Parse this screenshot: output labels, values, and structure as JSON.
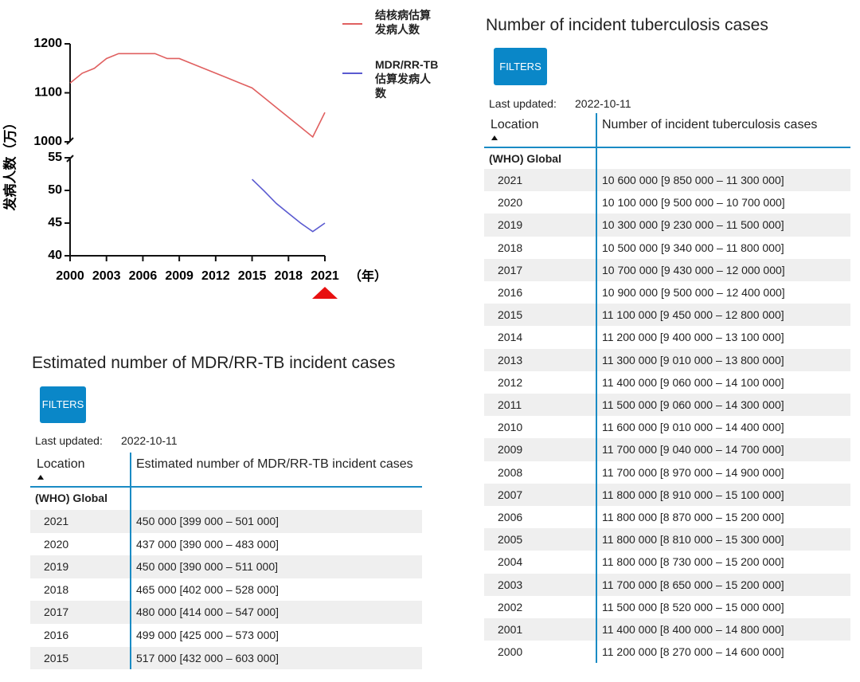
{
  "chart_data": {
    "type": "line",
    "x": [
      2000,
      2001,
      2002,
      2003,
      2004,
      2005,
      2006,
      2007,
      2008,
      2009,
      2010,
      2011,
      2012,
      2013,
      2014,
      2015,
      2016,
      2017,
      2018,
      2019,
      2020,
      2021
    ],
    "xlim": [
      2000,
      2021
    ],
    "xticks": [
      2000,
      2003,
      2006,
      2009,
      2012,
      2015,
      2018,
      2021
    ],
    "ylim": [
      1000,
      1200
    ],
    "yticks": [
      1000,
      1100,
      1200
    ],
    "y2lim": [
      40,
      55
    ],
    "y2ticks": [
      40,
      45,
      50,
      55
    ],
    "y_label": "发病人数（万）",
    "x_label": "（年）",
    "series": [
      {
        "name": "结核病估算发病人数",
        "color": "#e06060",
        "values": [
          1120,
          1140,
          1150,
          1170,
          1180,
          1180,
          1180,
          1180,
          1170,
          1170,
          1160,
          1150,
          1140,
          1130,
          1120,
          1110,
          1090,
          1070,
          1050,
          1030,
          1010,
          1060
        ]
      },
      {
        "name": "MDR/RR-TB估算发病人数",
        "color": "#5a5ad0",
        "axis": "y2",
        "values": [
          null,
          null,
          null,
          null,
          null,
          null,
          null,
          null,
          null,
          null,
          null,
          null,
          null,
          null,
          null,
          51.7,
          49.9,
          48.0,
          46.5,
          45.0,
          43.7,
          45.0
        ]
      }
    ]
  },
  "tables": [
    {
      "title": "Number of incident tuberculosis cases",
      "filters": "FILTERS",
      "last_updated_label": "Last updated:",
      "last_updated": "2022-10-11",
      "columns": [
        "Location",
        "Number of incident tuberculosis cases"
      ],
      "group": "(WHO) Global",
      "rows": [
        [
          "2021",
          "10 600 000 [9 850 000 – 11 300 000]"
        ],
        [
          "2020",
          "10 100 000 [9 500 000 – 10 700 000]"
        ],
        [
          "2019",
          "10 300 000 [9 230 000 – 11 500 000]"
        ],
        [
          "2018",
          "10 500 000 [9 340 000 – 11 800 000]"
        ],
        [
          "2017",
          "10 700 000 [9 430 000 – 12 000 000]"
        ],
        [
          "2016",
          "10 900 000 [9 500 000 – 12 400 000]"
        ],
        [
          "2015",
          "11 100 000 [9 450 000 – 12 800 000]"
        ],
        [
          "2014",
          "11 200 000 [9 400 000 – 13 100 000]"
        ],
        [
          "2013",
          "11 300 000 [9 010 000 – 13 800 000]"
        ],
        [
          "2012",
          "11 400 000 [9 060 000 – 14 100 000]"
        ],
        [
          "2011",
          "11 500 000 [9 060 000 – 14 300 000]"
        ],
        [
          "2010",
          "11 600 000 [9 010 000 – 14 400 000]"
        ],
        [
          "2009",
          "11 700 000 [9 040 000 – 14 700 000]"
        ],
        [
          "2008",
          "11 700 000 [8 970 000 – 14 900 000]"
        ],
        [
          "2007",
          "11 800 000 [8 910 000 – 15 100 000]"
        ],
        [
          "2006",
          "11 800 000 [8 870 000 – 15 200 000]"
        ],
        [
          "2005",
          "11 800 000 [8 810 000 – 15 300 000]"
        ],
        [
          "2004",
          "11 800 000 [8 730 000 – 15 200 000]"
        ],
        [
          "2003",
          "11 700 000 [8 650 000 – 15 200 000]"
        ],
        [
          "2002",
          "11 500 000 [8 520 000 – 15 000 000]"
        ],
        [
          "2001",
          "11 400 000 [8 400 000 – 14 800 000]"
        ],
        [
          "2000",
          "11 200 000 [8 270 000 – 14 600 000]"
        ]
      ]
    },
    {
      "title": "Estimated number of MDR/RR-TB incident cases",
      "filters": "FILTERS",
      "last_updated_label": "Last updated:",
      "last_updated": "2022-10-11",
      "columns": [
        "Location",
        "Estimated number of MDR/RR-TB incident cases"
      ],
      "group": "(WHO) Global",
      "rows": [
        [
          "2021",
          "450 000 [399 000 – 501 000]"
        ],
        [
          "2020",
          "437 000 [390 000 – 483 000]"
        ],
        [
          "2019",
          "450 000 [390 000 – 511 000]"
        ],
        [
          "2018",
          "465 000 [402 000 – 528 000]"
        ],
        [
          "2017",
          "480 000 [414 000 – 547 000]"
        ],
        [
          "2016",
          "499 000 [425 000 – 573 000]"
        ],
        [
          "2015",
          "517 000 [432 000 – 603 000]"
        ]
      ]
    }
  ]
}
